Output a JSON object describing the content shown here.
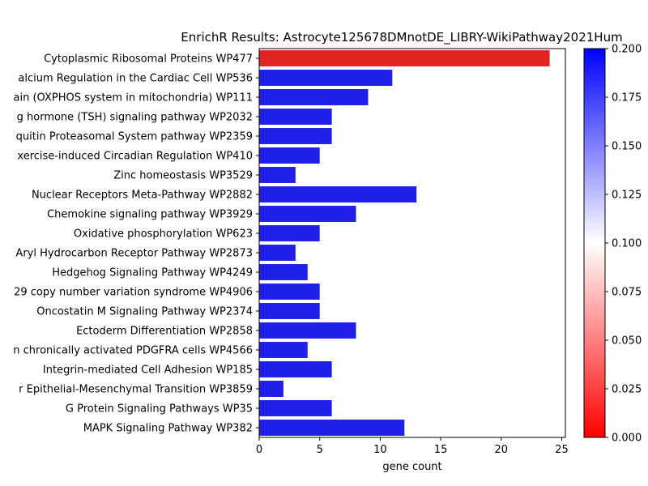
{
  "chart_data": {
    "type": "bar",
    "orientation": "horizontal",
    "title": "EnrichR Results: Astrocyte125678DMnotDE_LIBRY-WikiPathway2021Hum",
    "xlabel": "gene count",
    "ylabel": "",
    "xlim": [
      0,
      25.3
    ],
    "xticks": [
      0,
      5,
      10,
      15,
      20,
      25
    ],
    "grid": false,
    "categories": [
      "Cytoplasmic Ribosomal Proteins WP477",
      "alcium Regulation in the Cardiac Cell WP536",
      "ain (OXPHOS system in mitochondria) WP111",
      "g hormone (TSH) signaling pathway WP2032",
      "quitin Proteasomal System pathway WP2359",
      "xercise-induced Circadian Regulation WP410",
      "Zinc homeostasis WP3529",
      "Nuclear Receptors Meta-Pathway WP2882",
      "Chemokine signaling pathway WP3929",
      "Oxidative phosphorylation WP623",
      "Aryl Hydrocarbon Receptor Pathway WP2873",
      "Hedgehog Signaling Pathway WP4249",
      "29 copy number variation syndrome WP4906",
      "Oncostatin M Signaling Pathway WP2374",
      "Ectoderm Differentiation WP2858",
      "n chronically activated PDGFRA cells WP4566",
      "Integrin-mediated Cell Adhesion WP185",
      "r Epithelial-Mesenchymal Transition WP3859",
      "G Protein Signaling Pathways WP35",
      "MAPK Signaling Pathway WP382"
    ],
    "values": [
      24,
      11,
      9,
      6,
      6,
      5,
      3,
      13,
      8,
      5,
      3,
      4,
      5,
      5,
      8,
      4,
      6,
      2,
      6,
      12
    ],
    "bar_colors": [
      "#e32222",
      "#1f1fe8",
      "#1f1fe8",
      "#1f1fe8",
      "#1f1fe8",
      "#1f1fe8",
      "#1f1fe8",
      "#1f1fe8",
      "#1f1fe8",
      "#1f1fe8",
      "#1f1fe8",
      "#1f1fe8",
      "#1f1fe8",
      "#1f1fe8",
      "#1f1fe8",
      "#1f1fe8",
      "#1f1fe8",
      "#1f1fe8",
      "#1f1fe8",
      "#1f1fe8"
    ],
    "colorbar": {
      "range": [
        0.0,
        0.2
      ],
      "ticks": [
        "0.000",
        "0.025",
        "0.050",
        "0.075",
        "0.100",
        "0.125",
        "0.150",
        "0.175",
        "0.200"
      ],
      "colors": [
        "#ff0000",
        "#ffffff",
        "#0000ff"
      ]
    }
  }
}
